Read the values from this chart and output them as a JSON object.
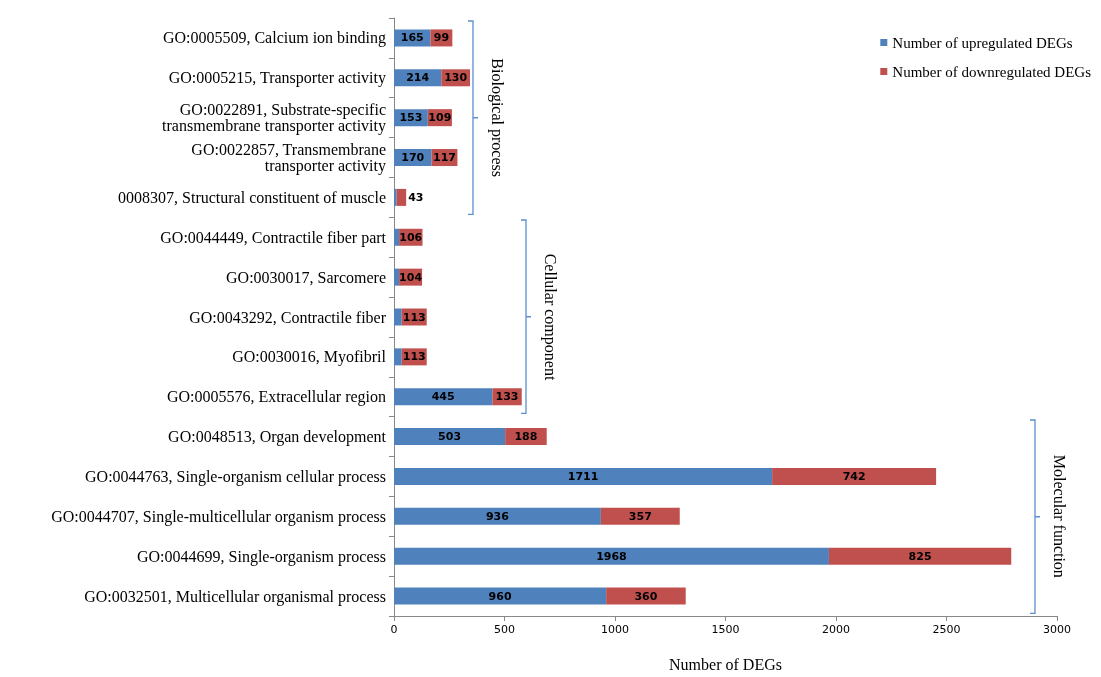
{
  "chart_data": {
    "type": "bar",
    "orientation": "horizontal",
    "stacked": true,
    "xlabel": "Number of DEGs",
    "categories": [
      "GO:0005509, Calcium ion binding",
      "GO:0005215, Transporter activity",
      "GO:0022891, Substrate-specific\ntransmembrane transporter activity",
      "GO:0022857, Transmembrane\ntransporter activity",
      "0008307, Structural constituent of muscle",
      "GO:0044449, Contractile fiber part",
      "GO:0030017, Sarcomere",
      "GO:0043292, Contractile fiber",
      "GO:0030016, Myofibril",
      "GO:0005576, Extracellular region",
      "GO:0048513, Organ development",
      "GO:0044763, Single-organism cellular process",
      "GO:0044707, Single-multicellular organism process",
      "GO:0044699, Single-organism process",
      "GO:0032501, Multicellular organismal process"
    ],
    "series": [
      {
        "name": "Number of upregulated DEGs",
        "color": "#4f81bd",
        "values": [
          165,
          214,
          153,
          170,
          12,
          23,
          23,
          35,
          35,
          445,
          503,
          1711,
          936,
          1968,
          960
        ],
        "value_labels": [
          "165",
          "214",
          "153",
          "170",
          null,
          null,
          null,
          null,
          null,
          "445",
          "503",
          "1711",
          "936",
          "1968",
          "960"
        ]
      },
      {
        "name": "Number of downregulated DEGs",
        "color": "#c0504d",
        "values": [
          99,
          130,
          109,
          117,
          43,
          106,
          104,
          113,
          113,
          133,
          188,
          742,
          357,
          825,
          360
        ],
        "value_labels": [
          "99",
          "130",
          "109",
          "117",
          "43",
          "106",
          "104",
          "113",
          "113",
          "133",
          "188",
          "742",
          "357",
          "825",
          "360"
        ]
      }
    ],
    "xlim": [
      0,
      3000
    ],
    "xticks": [
      0,
      500,
      1000,
      1500,
      2000,
      2500,
      3000
    ],
    "grid": false,
    "legend": "top right",
    "annotations": [
      "Biological process",
      "Cellular component",
      "Molecular function"
    ]
  }
}
